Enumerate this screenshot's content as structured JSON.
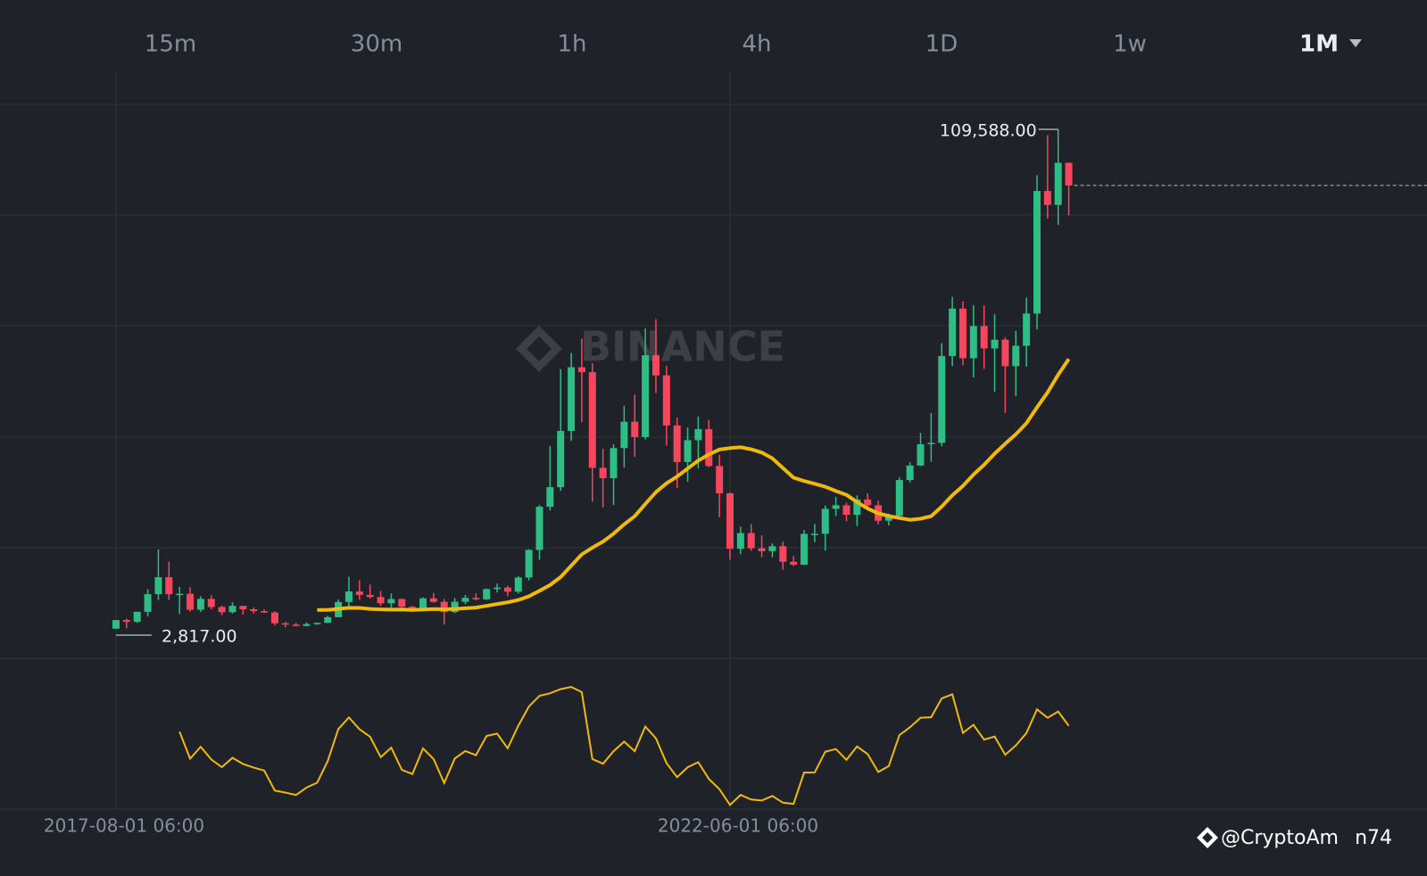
{
  "tabs": [
    "15m",
    "30m",
    "1h",
    "4h",
    "1D",
    "1w",
    "1M"
  ],
  "watermark": "BINANCE",
  "credit": "@CryptoAm",
  "credit_suffix": "n74",
  "chart_data": {
    "type": "candlestick",
    "categories": [
      "2017-08-01 06:00",
      null,
      null,
      null,
      null,
      null,
      null,
      null,
      null,
      null,
      null,
      null,
      null,
      null,
      null,
      null,
      null,
      null,
      null,
      null,
      null,
      null,
      null,
      null,
      null,
      null,
      null,
      null,
      null,
      null,
      null,
      null,
      null,
      null,
      null,
      null,
      null,
      null,
      null,
      null,
      null,
      null,
      null,
      null,
      null,
      null,
      null,
      null,
      null,
      null,
      null,
      null,
      null,
      null,
      null,
      null,
      null,
      null,
      "2022-06-01 06:00",
      null,
      null,
      null,
      null,
      null,
      null,
      null,
      null,
      null,
      null,
      null,
      null,
      null,
      null,
      null,
      null,
      null,
      null,
      null,
      null,
      null,
      null,
      null,
      null,
      null,
      null,
      null,
      null,
      null,
      null,
      null,
      null
    ],
    "open": [
      2871,
      4703,
      4339,
      6468,
      10233,
      13860,
      10221,
      10326,
      6923,
      9240,
      7494,
      6398,
      7729,
      7011,
      6614,
      6317,
      4017,
      3742,
      3457,
      3854,
      4105,
      5320,
      8574,
      10817,
      10085,
      9630,
      8293,
      9199,
      7546,
      7193,
      9350,
      8599,
      6424,
      8624,
      9446,
      9138,
      11335,
      11649,
      10776,
      13797,
      19700,
      28923,
      33108,
      45137,
      58740,
      57694,
      37254,
      35040,
      41461,
      47100,
      43824,
      61318,
      57005,
      46306,
      38483,
      43160,
      45510,
      37630,
      31801,
      19942,
      23300,
      20050,
      19423,
      20490,
      17165,
      16542,
      23125,
      23142,
      28478,
      29233,
      27210,
      30472,
      29230,
      25940,
      26967,
      34640,
      37724,
      42284,
      42580,
      61130,
      71280,
      60670,
      67540,
      62770,
      64630,
      58970,
      63330,
      70220,
      96410,
      93430,
      102430
    ],
    "high": [
      4736,
      5000,
      6470,
      11300,
      19798,
      17200,
      11800,
      11700,
      9800,
      10000,
      7800,
      8500,
      7700,
      7400,
      7000,
      6600,
      4300,
      4100,
      4200,
      4150,
      5640,
      9100,
      13970,
      13200,
      12300,
      10900,
      10370,
      9300,
      7750,
      9580,
      10500,
      9200,
      9450,
      10080,
      10400,
      11450,
      12480,
      12050,
      14100,
      19860,
      29300,
      41950,
      58350,
      61800,
      64850,
      59600,
      41300,
      42300,
      50500,
      52900,
      67000,
      69000,
      59050,
      47990,
      45850,
      48190,
      47450,
      40000,
      31980,
      24670,
      25200,
      22800,
      21100,
      21480,
      18390,
      23960,
      25250,
      29190,
      31000,
      29820,
      31390,
      31800,
      30250,
      27480,
      35280,
      38420,
      44700,
      48970,
      63900,
      73780,
      72800,
      71980,
      71960,
      70080,
      65100,
      66500,
      73620,
      99800,
      108350,
      109588,
      102500
    ],
    "low": [
      2817,
      2972,
      4110,
      5500,
      9000,
      9000,
      6000,
      6500,
      6425,
      7000,
      5755,
      6100,
      5880,
      6100,
      6200,
      3550,
      3128,
      3350,
      3350,
      3700,
      4050,
      5300,
      7450,
      9000,
      9300,
      7700,
      7300,
      6500,
      6430,
      6850,
      8400,
      3782,
      6150,
      8100,
      8900,
      8975,
      10600,
      9825,
      10370,
      13200,
      17570,
      28130,
      32300,
      43000,
      47000,
      30000,
      28800,
      29300,
      37300,
      39600,
      43300,
      53256,
      42000,
      32900,
      34300,
      37150,
      37380,
      26700,
      17600,
      18780,
      19520,
      18150,
      18130,
      15480,
      16256,
      16500,
      21350,
      19550,
      26940,
      25810,
      24800,
      28860,
      25166,
      24900,
      26540,
      34100,
      37630,
      38550,
      41880,
      59000,
      59190,
      56550,
      58400,
      53500,
      49000,
      52550,
      58900,
      66800,
      90500,
      89160,
      91200
    ],
    "close": [
      4703,
      4339,
      6468,
      10233,
      13860,
      10221,
      10326,
      6923,
      9240,
      7494,
      6398,
      7729,
      7011,
      6614,
      6317,
      4017,
      3742,
      3457,
      3854,
      4105,
      5320,
      8574,
      10817,
      10085,
      9630,
      8293,
      9199,
      7546,
      7193,
      9350,
      8599,
      6424,
      8624,
      9446,
      9138,
      11335,
      11649,
      10776,
      13797,
      19700,
      28923,
      33108,
      45137,
      58740,
      57694,
      37254,
      35040,
      41461,
      47100,
      43824,
      61318,
      57005,
      46306,
      38483,
      43160,
      45510,
      37630,
      31801,
      19942,
      23300,
      20050,
      19423,
      20490,
      17165,
      16542,
      23125,
      23142,
      28478,
      29233,
      27210,
      30472,
      29230,
      25940,
      26967,
      34640,
      37724,
      42284,
      42580,
      61130,
      71280,
      60670,
      67540,
      62770,
      64630,
      58970,
      63330,
      70220,
      96410,
      93430,
      102430,
      97600
    ],
    "ylim": [
      -3475,
      121980
    ],
    "up_color": "#2ebd85",
    "down_color": "#f6465d",
    "ma_color": "#f0b90b",
    "ma_period": 20,
    "rsi_period": 6,
    "max_label": "109,588.00",
    "min_label": "2,817.00"
  }
}
